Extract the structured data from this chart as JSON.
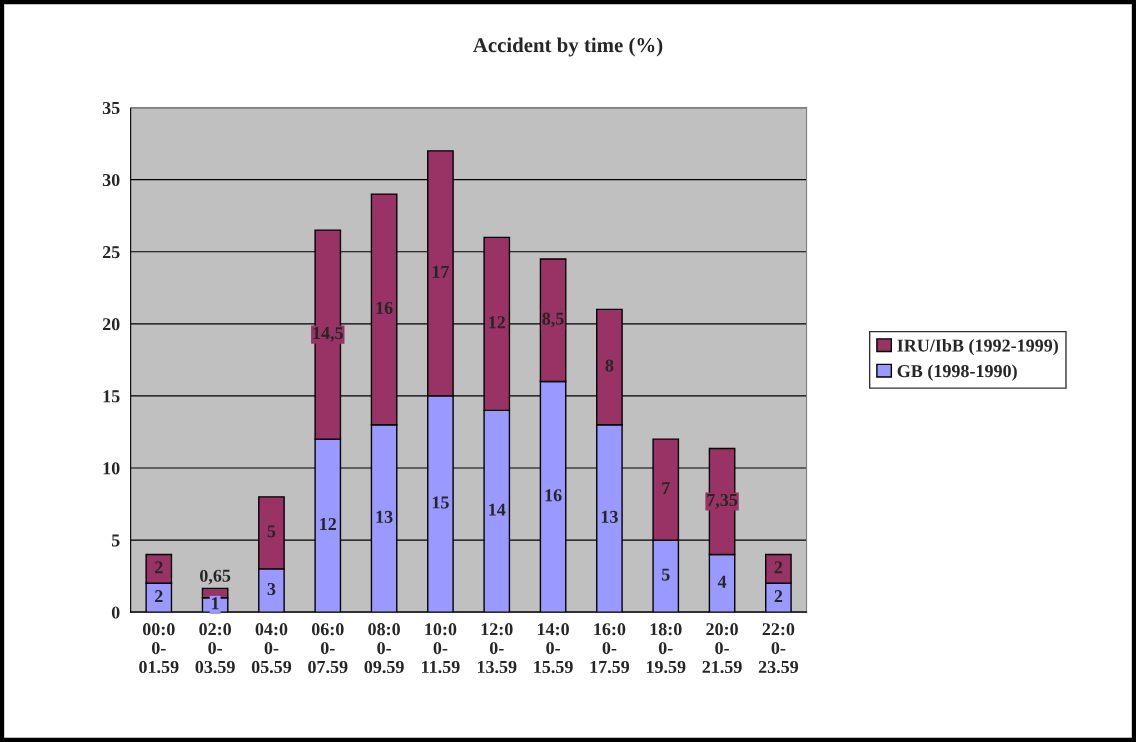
{
  "chart_data": {
    "type": "bar",
    "title": "Accident by time (%)",
    "stacked": true,
    "categories": [
      "00:0\n0-\n01.59",
      "02:0\n0-\n03.59",
      "04:0\n0-\n05.59",
      "06:0\n0-\n07.59",
      "08:0\n0-\n09.59",
      "10:0\n0-\n11.59",
      "12:0\n0-\n13.59",
      "14:0\n0-\n15.59",
      "16:0\n0-\n17.59",
      "18:0\n0-\n19.59",
      "20:0\n0-\n21.59",
      "22:0\n0-\n23.59"
    ],
    "series": [
      {
        "name": "GB (1998-1990)",
        "color": "#9999ff",
        "values": [
          2,
          1,
          3,
          12,
          13,
          15,
          14,
          16,
          13,
          5,
          4,
          2
        ],
        "value_labels": [
          "2",
          "1",
          "3",
          "12",
          "13",
          "15",
          "14",
          "16",
          "13",
          "5",
          "4",
          "2"
        ]
      },
      {
        "name": "IRU/IbB (1992-1999)",
        "color": "#993366",
        "values": [
          2,
          0.65,
          5,
          14.5,
          16,
          17,
          12,
          8.5,
          8,
          7,
          7.35,
          2
        ],
        "value_labels": [
          "2",
          "0,65",
          "5",
          "14,5",
          "16",
          "17",
          "12",
          "8,5",
          "8",
          "7",
          "7,35",
          "2"
        ]
      }
    ],
    "ylim": [
      0,
      35
    ],
    "yticks": [
      0,
      5,
      10,
      15,
      20,
      25,
      30,
      35
    ],
    "grid": "y",
    "legend": "right"
  }
}
